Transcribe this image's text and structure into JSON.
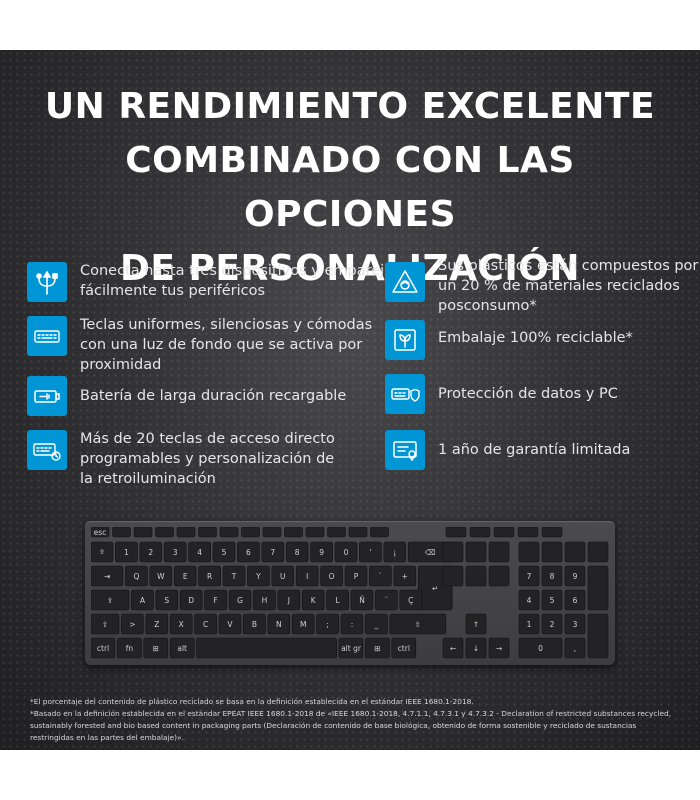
{
  "headline": {
    "line1": "UN RENDIMIENTO EXCELENTE",
    "line2": "COMBINADO CON LAS OPCIONES",
    "line3": "DE PERSONALIZACIÓN"
  },
  "features_left": [
    {
      "icon": "usb-multi-device-icon",
      "lines": [
        "Conecta hasta tres dispositivos y empareja",
        "fácilmente tus periféricos"
      ]
    },
    {
      "icon": "keyboard-backlight-icon",
      "lines": [
        "Teclas uniformes, silenciosas y cómodas",
        "con una luz de fondo que se activa por",
        "proximidad"
      ]
    },
    {
      "icon": "rechargeable-battery-icon",
      "lines": [
        "Batería de larga duración recargable"
      ]
    },
    {
      "icon": "programmable-keys-icon",
      "lines": [
        "Más de 20 teclas de acceso directo",
        "programables y personalización de",
        "la retroiluminación"
      ]
    }
  ],
  "features_right": [
    {
      "icon": "recycle-triangle-icon",
      "lines": [
        "Sus plásticos están compuestos por",
        "un 20 % de materiales reciclados",
        "posconsumo*"
      ]
    },
    {
      "icon": "recyclable-packaging-icon",
      "lines": [
        "Embalaje 100% reciclable*"
      ]
    },
    {
      "icon": "data-protection-icon",
      "lines": [
        "Protección de datos y PC"
      ]
    },
    {
      "icon": "warranty-icon",
      "lines": [
        "1 año de garantía limitada"
      ]
    }
  ],
  "keyboard": {
    "fn_row": [
      "esc",
      "",
      "",
      "",
      "",
      "",
      "",
      "",
      "",
      "",
      "",
      "",
      "",
      "",
      "",
      "",
      "",
      "",
      "",
      "",
      ""
    ],
    "num_row": [
      "°",
      "!",
      "\"",
      "·",
      "$",
      "%",
      "&",
      "/",
      "(",
      ")",
      "=",
      "?",
      "¿",
      "⌫",
      "",
      "",
      "",
      ""
    ],
    "num_row_low": [
      "º",
      "1",
      "2",
      "3",
      "4",
      "5",
      "6",
      "7",
      "8",
      "9",
      "0",
      "'",
      "¡"
    ],
    "row_q": [
      "⇥",
      "Q",
      "W",
      "E",
      "R",
      "T",
      "Y",
      "U",
      "I",
      "O",
      "P",
      "`",
      "+",
      "↵",
      "",
      "",
      "7",
      "8",
      "9"
    ],
    "row_a": [
      "⇪",
      "A",
      "S",
      "D",
      "F",
      "G",
      "H",
      "J",
      "K",
      "L",
      "Ñ",
      "¨",
      "Ç",
      "",
      "4",
      "5",
      "6"
    ],
    "row_z": [
      "⇧",
      ">",
      "Z",
      "X",
      "C",
      "V",
      "B",
      "N",
      "M",
      ";",
      ":",
      "_",
      "⇧",
      "↑",
      "1",
      "2",
      "3"
    ],
    "row_bottom": [
      "ctrl",
      "fn",
      "⊞",
      "alt",
      "",
      "alt gr",
      "⊞",
      "ctrl",
      "←",
      "↓",
      "→",
      "0",
      ","
    ]
  },
  "footnotes": [
    "*El porcentaje del contenido de plástico reciclado se basa en la definición establecida en el estándar IEEE 1680.1-2018.",
    "*Basado en la definición establecida en el estándar EPEAT IEEE 1680.1-2018 de «IEEE 1680.1-2018, 4.7.1.1, 4.7.3.1 y 4.7.3.2 - Declaration of restricted substances recycled, sustainably forested and bio based content in packaging parts (Declaración de contenido de base biológica, obtenido de forma sostenible y reciclado de sustancias restringidas en las partes del embalaje)»."
  ],
  "colors": {
    "icon_bg": "#0096d6",
    "panel_bg": "#333336",
    "text": "#ffffff"
  }
}
